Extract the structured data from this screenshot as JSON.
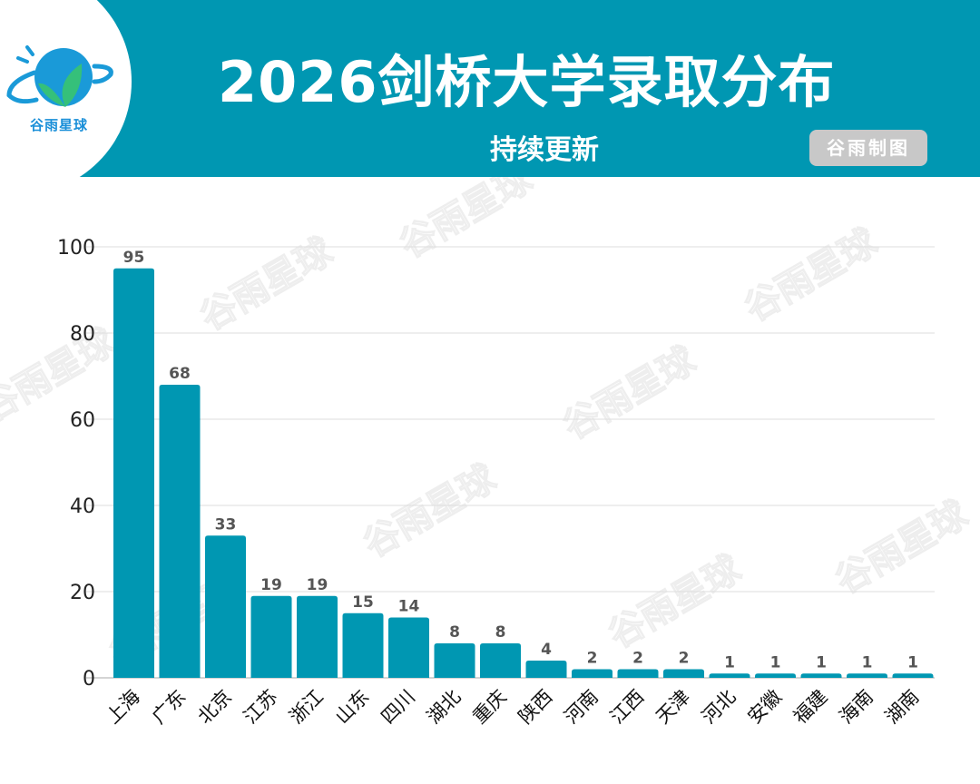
{
  "header": {
    "title": "2026剑桥大学录取分布",
    "subtitle": "持续更新",
    "badge": "谷雨制图",
    "logo_text": "谷雨星球",
    "background_color": "#0097b2"
  },
  "watermark": "谷雨星球",
  "chart_data": {
    "type": "bar",
    "title": "2026剑桥大学录取分布",
    "categories": [
      "上海",
      "广东",
      "北京",
      "江苏",
      "浙江",
      "山东",
      "四川",
      "湖北",
      "重庆",
      "陕西",
      "河南",
      "江西",
      "天津",
      "河北",
      "安徽",
      "福建",
      "海南",
      "湖南"
    ],
    "values": [
      95,
      68,
      33,
      19,
      19,
      15,
      14,
      8,
      8,
      4,
      2,
      2,
      2,
      1,
      1,
      1,
      1,
      1
    ],
    "ylim": [
      0,
      100
    ],
    "yticks": [
      0,
      20,
      40,
      60,
      80,
      100
    ],
    "grid": true,
    "bar_color": "#0097b2",
    "data_labels": true,
    "xlabel": "",
    "ylabel": ""
  }
}
